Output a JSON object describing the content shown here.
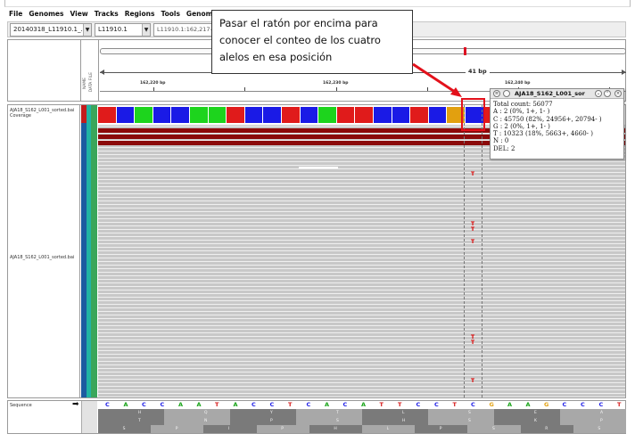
{
  "menu": [
    "File",
    "Genomes",
    "View",
    "Tracks",
    "Regions",
    "Tools",
    "GenomeSpace"
  ],
  "toolbar": {
    "genome_value": "20140318_L11910.1_...",
    "chromosome_value": "L11910.1",
    "locus_value": "L11910.1:162,217-162,"
  },
  "header": {
    "attribute_labels": [
      "NAME",
      "DATA FILE"
    ],
    "span_label": "41 bp",
    "ticks": [
      "162,220 bp",
      "162,230 bp",
      "162,240 bp"
    ]
  },
  "tracks": {
    "coverage_name": "AJA18_S162_L001_sorted.bai Coverage",
    "alignment_name": "AJA18_S162_L001_sorted.bai",
    "sequence_name": "Sequence"
  },
  "coverage_colors": [
    "#e01b1b",
    "#1a1ae6",
    "#1dd41d",
    "#1a1ae6",
    "#1a1ae6",
    "#1dd41d",
    "#1dd41d",
    "#e01b1b",
    "#1a1ae6",
    "#1a1ae6",
    "#e01b1b",
    "#1a1ae6",
    "#1dd41d",
    "#e01b1b",
    "#e01b1b",
    "#1a1ae6",
    "#1a1ae6",
    "#e01b1b",
    "#1a1ae6",
    "#e2a00f",
    "#1a1ae6",
    "#e01b1b"
  ],
  "sequence": {
    "bases": [
      "C",
      "A",
      "C",
      "C",
      "A",
      "A",
      "T",
      "A",
      "C",
      "C",
      "T",
      "C",
      "A",
      "C",
      "A",
      "T",
      "T",
      "C",
      "C",
      "T",
      "C",
      "G",
      "A",
      "A",
      "G",
      "C",
      "C",
      "C",
      "T"
    ],
    "aa_row1": [
      "H",
      "Q",
      "Y",
      "T",
      "L",
      "S",
      "E",
      "A"
    ],
    "aa_row2": [
      "T",
      "N",
      "P",
      "S",
      "H",
      "S",
      "K",
      "P"
    ],
    "aa_row3": [
      "S",
      "P",
      "I",
      "P",
      "H",
      "L",
      "P",
      "S",
      "R",
      "S"
    ]
  },
  "popup": {
    "title": "AJA18_S162_L001_sor",
    "lines": [
      "Total count: 56077",
      "A : 2 (0%, 1+, 1- )",
      "C : 45750 (82%, 24956+, 20794- )",
      "G : 2 (0%, 1+, 1- )",
      "T : 10323 (18%, 5663+, 4660- )",
      "N : 0",
      "DEL: 2"
    ]
  },
  "callout": {
    "lines": [
      "Pasar el ratón por encima para",
      "conocer el conteo de los cuatro",
      "alelos en esa posición"
    ]
  },
  "colors": {
    "accent_red": "#e3111b",
    "read_gray": "#c8c8c8",
    "base_C": "#1a1ae6",
    "base_A": "#17a317",
    "base_T": "#d61a1a",
    "base_G": "#e2a00f"
  }
}
